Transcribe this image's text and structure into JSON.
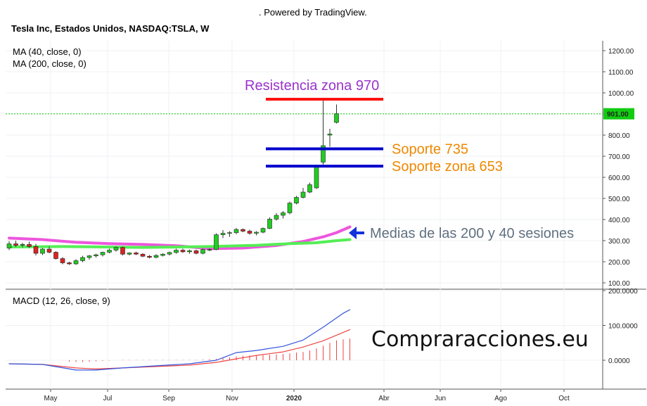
{
  "header": {
    "powered_by": ". Powered by TradingView.",
    "symbol_title": "Tesla Inc, Estados Unidos, NASDAQ:TSLA, W"
  },
  "indicators": {
    "ma40": "MA (40, close, 0)",
    "ma200": "MA (200, close, 0)",
    "macd": "MACD (12, 26, close, 9)"
  },
  "watermark": "Compraracciones.eu",
  "colors": {
    "up_candle": "#22cc22",
    "down_candle": "#dd2222",
    "ma40": "#55ee55",
    "ma200": "#ee55dd",
    "macd_line": "#3355dd",
    "signal_line": "#ee4444",
    "resistance": "#ff1111",
    "support": "#0000cc",
    "price_label_bg": "#11cc11"
  },
  "chart_data": [
    {
      "type": "candlestick",
      "price_scale": {
        "ylim": [
          100,
          1200
        ],
        "ticks": [
          "1200.00",
          "1100.00",
          "1000.00",
          "900.00",
          "800.00",
          "700.00",
          "600.00",
          "500.00",
          "400.00",
          "300.00",
          "200.00",
          "100.00"
        ]
      },
      "time_axis": [
        "May",
        "Jul",
        "Sep",
        "Nov",
        "2020",
        "Abr",
        "Jun",
        "Ago",
        "Oct"
      ],
      "last_price": "901.00",
      "candles": [
        {
          "o": 265,
          "h": 298,
          "l": 255,
          "c": 285
        },
        {
          "o": 285,
          "h": 300,
          "l": 270,
          "c": 278
        },
        {
          "o": 278,
          "h": 290,
          "l": 268,
          "c": 282
        },
        {
          "o": 282,
          "h": 295,
          "l": 265,
          "c": 272
        },
        {
          "o": 272,
          "h": 285,
          "l": 230,
          "c": 240
        },
        {
          "o": 240,
          "h": 265,
          "l": 232,
          "c": 260
        },
        {
          "o": 260,
          "h": 272,
          "l": 240,
          "c": 245
        },
        {
          "o": 245,
          "h": 250,
          "l": 210,
          "c": 215
        },
        {
          "o": 215,
          "h": 222,
          "l": 188,
          "c": 195
        },
        {
          "o": 195,
          "h": 200,
          "l": 185,
          "c": 190
        },
        {
          "o": 190,
          "h": 212,
          "l": 185,
          "c": 205
        },
        {
          "o": 205,
          "h": 228,
          "l": 198,
          "c": 220
        },
        {
          "o": 220,
          "h": 232,
          "l": 210,
          "c": 228
        },
        {
          "o": 228,
          "h": 238,
          "l": 220,
          "c": 233
        },
        {
          "o": 233,
          "h": 248,
          "l": 225,
          "c": 245
        },
        {
          "o": 245,
          "h": 262,
          "l": 240,
          "c": 255
        },
        {
          "o": 255,
          "h": 272,
          "l": 248,
          "c": 268
        },
        {
          "o": 268,
          "h": 272,
          "l": 230,
          "c": 236
        },
        {
          "o": 236,
          "h": 244,
          "l": 230,
          "c": 242
        },
        {
          "o": 242,
          "h": 248,
          "l": 232,
          "c": 236
        },
        {
          "o": 236,
          "h": 240,
          "l": 222,
          "c": 226
        },
        {
          "o": 226,
          "h": 232,
          "l": 216,
          "c": 221
        },
        {
          "o": 221,
          "h": 236,
          "l": 216,
          "c": 230
        },
        {
          "o": 230,
          "h": 240,
          "l": 225,
          "c": 236
        },
        {
          "o": 236,
          "h": 248,
          "l": 230,
          "c": 244
        },
        {
          "o": 244,
          "h": 262,
          "l": 238,
          "c": 255
        },
        {
          "o": 255,
          "h": 262,
          "l": 242,
          "c": 247
        },
        {
          "o": 247,
          "h": 258,
          "l": 238,
          "c": 252
        },
        {
          "o": 252,
          "h": 258,
          "l": 235,
          "c": 240
        },
        {
          "o": 240,
          "h": 262,
          "l": 235,
          "c": 258
        },
        {
          "o": 258,
          "h": 264,
          "l": 250,
          "c": 258
        },
        {
          "o": 258,
          "h": 335,
          "l": 255,
          "c": 328
        },
        {
          "o": 328,
          "h": 350,
          "l": 312,
          "c": 335
        },
        {
          "o": 335,
          "h": 345,
          "l": 318,
          "c": 338
        },
        {
          "o": 338,
          "h": 360,
          "l": 330,
          "c": 353
        },
        {
          "o": 353,
          "h": 358,
          "l": 340,
          "c": 345
        },
        {
          "o": 345,
          "h": 352,
          "l": 328,
          "c": 335
        },
        {
          "o": 335,
          "h": 345,
          "l": 325,
          "c": 340
        },
        {
          "o": 340,
          "h": 362,
          "l": 335,
          "c": 358
        },
        {
          "o": 358,
          "h": 410,
          "l": 355,
          "c": 402
        },
        {
          "o": 402,
          "h": 430,
          "l": 395,
          "c": 420
        },
        {
          "o": 420,
          "h": 440,
          "l": 405,
          "c": 432
        },
        {
          "o": 432,
          "h": 485,
          "l": 425,
          "c": 478
        },
        {
          "o": 478,
          "h": 512,
          "l": 472,
          "c": 505
        },
        {
          "o": 505,
          "h": 550,
          "l": 500,
          "c": 530
        },
        {
          "o": 530,
          "h": 575,
          "l": 525,
          "c": 565
        },
        {
          "o": 550,
          "h": 660,
          "l": 545,
          "c": 650
        },
        {
          "o": 672,
          "h": 968,
          "l": 660,
          "c": 750
        },
        {
          "o": 800,
          "h": 830,
          "l": 745,
          "c": 805
        },
        {
          "o": 860,
          "h": 945,
          "l": 855,
          "c": 901
        }
      ],
      "ma40_name": "MA (40, close, 0)",
      "ma40": [
        {
          "i": 0,
          "v": 270
        },
        {
          "i": 8,
          "v": 272
        },
        {
          "i": 20,
          "v": 268
        },
        {
          "i": 30,
          "v": 272
        },
        {
          "i": 37,
          "v": 278
        },
        {
          "i": 42,
          "v": 286
        },
        {
          "i": 46,
          "v": 290
        },
        {
          "i": 49,
          "v": 300
        },
        {
          "i": 51,
          "v": 305
        }
      ],
      "ma200_name": "MA (200, close, 0)",
      "ma200": [
        {
          "i": 0,
          "v": 312
        },
        {
          "i": 5,
          "v": 305
        },
        {
          "i": 10,
          "v": 292
        },
        {
          "i": 15,
          "v": 286
        },
        {
          "i": 20,
          "v": 282
        },
        {
          "i": 25,
          "v": 276
        },
        {
          "i": 30,
          "v": 262
        },
        {
          "i": 35,
          "v": 265
        },
        {
          "i": 40,
          "v": 277
        },
        {
          "i": 44,
          "v": 296
        },
        {
          "i": 47,
          "v": 318
        },
        {
          "i": 49,
          "v": 338
        },
        {
          "i": 51,
          "v": 365
        }
      ],
      "levels": [
        {
          "name": "Resistencia zona 970",
          "value": 970,
          "color": "#ff1111",
          "text_color": "#9933cc",
          "from_i": 43,
          "to_i": 56,
          "label_side": "above"
        },
        {
          "name": "Soporte 735",
          "value": 735,
          "color": "#0000cc",
          "text_color": "#ee8800",
          "from_i": 43,
          "to_i": 56,
          "label_side": "right"
        },
        {
          "name": "Soporte zona 653",
          "value": 653,
          "color": "#0000cc",
          "text_color": "#ee8800",
          "from_i": 43,
          "to_i": 56,
          "label_side": "right"
        }
      ],
      "moving_average_annotation": "Medias de las 200 y 40 sesiones"
    },
    {
      "type": "line",
      "title": "MACD (12, 26, close, 9)",
      "ylim": [
        -130,
        215
      ],
      "ticks": [
        "200.0000",
        "100.0000",
        "0.0000"
      ],
      "macd_line": [
        {
          "i": 0,
          "v": -10
        },
        {
          "i": 5,
          "v": -12
        },
        {
          "i": 10,
          "v": -28
        },
        {
          "i": 13,
          "v": -28
        },
        {
          "i": 17,
          "v": -22
        },
        {
          "i": 22,
          "v": -16
        },
        {
          "i": 27,
          "v": -10
        },
        {
          "i": 31,
          "v": 0
        },
        {
          "i": 34,
          "v": 22
        },
        {
          "i": 37,
          "v": 28
        },
        {
          "i": 41,
          "v": 40
        },
        {
          "i": 44,
          "v": 58
        },
        {
          "i": 47,
          "v": 95
        },
        {
          "i": 50,
          "v": 135
        },
        {
          "i": 51,
          "v": 145
        }
      ],
      "signal_line": [
        {
          "i": 0,
          "v": -10
        },
        {
          "i": 5,
          "v": -12
        },
        {
          "i": 10,
          "v": -22
        },
        {
          "i": 13,
          "v": -25
        },
        {
          "i": 17,
          "v": -22
        },
        {
          "i": 22,
          "v": -18
        },
        {
          "i": 27,
          "v": -14
        },
        {
          "i": 31,
          "v": -6
        },
        {
          "i": 34,
          "v": 4
        },
        {
          "i": 37,
          "v": 14
        },
        {
          "i": 41,
          "v": 24
        },
        {
          "i": 44,
          "v": 38
        },
        {
          "i": 47,
          "v": 56
        },
        {
          "i": 50,
          "v": 80
        },
        {
          "i": 51,
          "v": 88
        }
      ],
      "histogram": [
        0,
        0,
        0,
        0,
        0,
        0,
        0,
        0,
        0,
        -4,
        -5,
        -5,
        -4,
        -3,
        -2,
        -1,
        0,
        1,
        1,
        1,
        1,
        1,
        1,
        1,
        1,
        1,
        1,
        1,
        1,
        2,
        3,
        4,
        6,
        8,
        11,
        13,
        14,
        14,
        15,
        16,
        17,
        18,
        20,
        22,
        24,
        28,
        34,
        42,
        50,
        57,
        60,
        62
      ]
    }
  ]
}
